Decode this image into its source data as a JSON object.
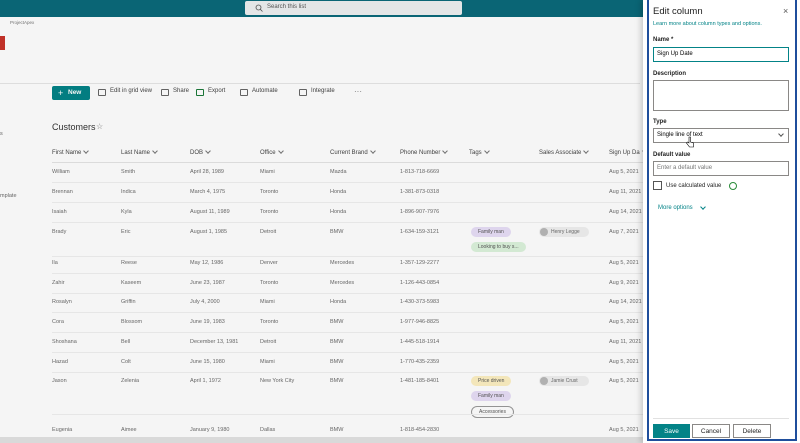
{
  "top_bar": {
    "search_placeholder": "Search this list"
  },
  "site": {
    "name": "ProjectApex"
  },
  "left_nav": {
    "fragments": [
      "s",
      "mplate"
    ]
  },
  "command_bar": {
    "new": "New",
    "actions": [
      "Edit in grid view",
      "Share",
      "Export",
      "Automate",
      "Integrate"
    ]
  },
  "list": {
    "title": "Customers",
    "columns": [
      "First Name",
      "Last Name",
      "DOB",
      "Office",
      "Current Brand",
      "Phone Number",
      "Tags",
      "Sales Associate",
      "Sign Up Da"
    ],
    "rows": [
      {
        "cells": [
          "William",
          "Smith",
          "April 28, 1989",
          "Miami",
          "Mazda",
          "1-813-718-6669"
        ],
        "signup": "Aug 5, 2021"
      },
      {
        "cells": [
          "Brennan",
          "Indica",
          "March 4, 1975",
          "Toronto",
          "Honda",
          "1-381-873-0318"
        ],
        "signup": "Aug 11, 2021"
      },
      {
        "cells": [
          "Isaiah",
          "Kyla",
          "August 11, 1989",
          "Toronto",
          "Honda",
          "1-896-907-7976"
        ],
        "signup": "Aug 14, 2021"
      },
      {
        "cells": [
          "Brady",
          "Eric",
          "August 1, 1985",
          "Detroit",
          "BMW",
          "1-634-159-3121"
        ],
        "tags": [
          "Family man",
          "Looking to buy s..."
        ],
        "associate": "Henry Legge",
        "signup": "Aug 7, 2021"
      },
      {
        "cells": [
          "Ila",
          "Reese",
          "May 12, 1986",
          "Denver",
          "Mercedes",
          "1-357-129-2277"
        ],
        "signup": "Aug 5, 2021"
      },
      {
        "cells": [
          "Zahir",
          "Kaseem",
          "June 23, 1987",
          "Toronto",
          "Mercedes",
          "1-126-443-0854"
        ],
        "signup": "Aug 9, 2021"
      },
      {
        "cells": [
          "Rosalyn",
          "Griffin",
          "July 4, 2000",
          "Miami",
          "Honda",
          "1-430-373-5983"
        ],
        "signup": "Aug 14, 2021"
      },
      {
        "cells": [
          "Cora",
          "Blossom",
          "June 19, 1983",
          "Toronto",
          "BMW",
          "1-977-946-8825"
        ],
        "signup": "Aug 5, 2021"
      },
      {
        "cells": [
          "Shoshana",
          "Bell",
          "December 13, 1981",
          "Detroit",
          "BMW",
          "1-445-518-1914"
        ],
        "signup": "Aug 11, 2021"
      },
      {
        "cells": [
          "Hazad",
          "Colt",
          "June 15, 1980",
          "Miami",
          "BMW",
          "1-770-435-2359"
        ],
        "signup": "Aug 5, 2021"
      },
      {
        "cells": [
          "Jason",
          "Zelenia",
          "April 1, 1972",
          "New York City",
          "BMW",
          "1-481-185-8401"
        ],
        "tags": [
          "Price driven",
          "Family man",
          "Accessories"
        ],
        "associate": "Jamie Crust",
        "signup": "Aug 5, 2021"
      },
      {
        "cells": [
          "Eugenia",
          "Aimee",
          "January 9, 1980",
          "Dallas",
          "BMW",
          "1-818-454-2830"
        ],
        "signup": "Aug 5, 2021"
      }
    ]
  },
  "panel": {
    "title": "Edit column",
    "link": "Learn more about column types and options.",
    "name_label": "Name *",
    "name_value": "Sign Up Date",
    "description_label": "Description",
    "type_label": "Type",
    "type_value": "Single line of text",
    "default_label": "Default value",
    "default_placeholder": "Enter a default value",
    "calculated_label": "Use calculated value",
    "more_options": "More options",
    "buttons": [
      "Save",
      "Cancel",
      "Delete"
    ]
  }
}
